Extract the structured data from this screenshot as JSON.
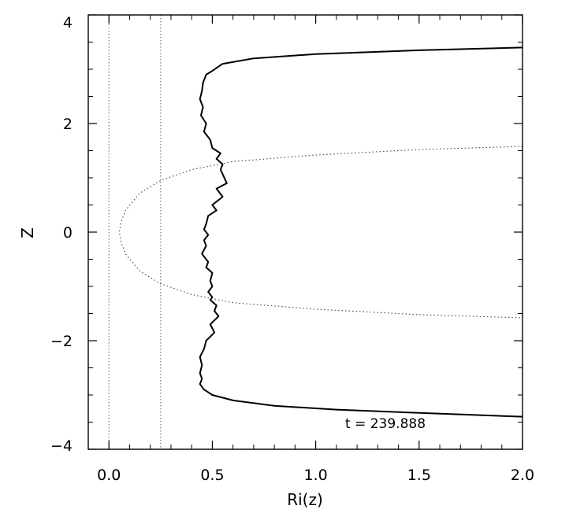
{
  "chart_data": {
    "type": "line",
    "xlabel": "Ri(z)",
    "ylabel": "Z",
    "xlim": [
      -0.1,
      2.0
    ],
    "ylim": [
      -4,
      4
    ],
    "x_ticks": [
      {
        "value": 0.0,
        "label": "0.0"
      },
      {
        "value": 0.5,
        "label": "0.5"
      },
      {
        "value": 1.0,
        "label": "1.0"
      },
      {
        "value": 1.5,
        "label": "1.5"
      },
      {
        "value": 2.0,
        "label": "2.0"
      }
    ],
    "y_ticks": [
      {
        "value": -4,
        "label": "−4"
      },
      {
        "value": -2,
        "label": "−2"
      },
      {
        "value": 0,
        "label": "0"
      },
      {
        "value": 2,
        "label": "2"
      },
      {
        "value": 4,
        "label": "4"
      }
    ],
    "annotation": "t  =  239.888",
    "reference_lines_x": [
      0.0,
      0.25
    ],
    "grid": false,
    "series": [
      {
        "style": "solid",
        "x": [
          2.0,
          1.5,
          1.0,
          0.7,
          0.55,
          0.5,
          0.47,
          0.455,
          0.45,
          0.44,
          0.455,
          0.445,
          0.47,
          0.46,
          0.49,
          0.5,
          0.54,
          0.52,
          0.55,
          0.54,
          0.57,
          0.52,
          0.55,
          0.5,
          0.52,
          0.48,
          0.47,
          0.46,
          0.48,
          0.46,
          0.47,
          0.45,
          0.48,
          0.47,
          0.5,
          0.49,
          0.5,
          0.48,
          0.5,
          0.49,
          0.52,
          0.51,
          0.53,
          0.49,
          0.51,
          0.47,
          0.46,
          0.44,
          0.45,
          0.44,
          0.45,
          0.44,
          0.46,
          0.5,
          0.6,
          0.8,
          1.1,
          1.5,
          2.0
        ],
        "y": [
          3.4,
          3.35,
          3.28,
          3.2,
          3.1,
          2.97,
          2.9,
          2.75,
          2.6,
          2.45,
          2.3,
          2.15,
          2.0,
          1.85,
          1.7,
          1.55,
          1.45,
          1.35,
          1.25,
          1.15,
          0.9,
          0.8,
          0.65,
          0.5,
          0.4,
          0.3,
          0.15,
          0.05,
          -0.05,
          -0.15,
          -0.25,
          -0.4,
          -0.55,
          -0.65,
          -0.75,
          -0.9,
          -1.0,
          -1.1,
          -1.2,
          -1.25,
          -1.35,
          -1.45,
          -1.55,
          -1.7,
          -1.85,
          -2.0,
          -2.15,
          -2.3,
          -2.45,
          -2.6,
          -2.7,
          -2.8,
          -2.9,
          -3.0,
          -3.1,
          -3.2,
          -3.27,
          -3.33,
          -3.4
        ]
      },
      {
        "style": "dotted",
        "x": [
          2.0,
          1.5,
          1.0,
          0.6,
          0.4,
          0.25,
          0.15,
          0.08,
          0.06,
          0.05,
          0.06,
          0.08,
          0.15,
          0.25,
          0.4,
          0.6,
          1.0,
          1.5,
          2.0
        ],
        "y": [
          1.58,
          1.52,
          1.42,
          1.3,
          1.15,
          0.95,
          0.72,
          0.4,
          0.2,
          0.0,
          -0.2,
          -0.4,
          -0.72,
          -0.95,
          -1.15,
          -1.3,
          -1.42,
          -1.52,
          -1.58
        ]
      }
    ]
  }
}
